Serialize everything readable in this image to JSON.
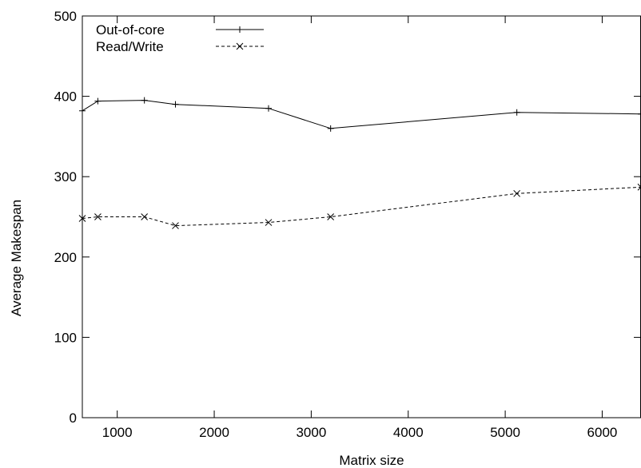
{
  "chart_data": {
    "type": "line",
    "xlabel": "Matrix size",
    "ylabel": "Average Makespan",
    "xlim": [
      640,
      6400
    ],
    "ylim": [
      0,
      500
    ],
    "xticks": [
      1000,
      2000,
      3000,
      4000,
      5000,
      6000
    ],
    "xtick_labels": [
      "1000",
      "2000",
      "3000",
      "4000",
      "5000",
      "6000"
    ],
    "yticks": [
      0,
      100,
      200,
      300,
      400,
      500
    ],
    "ytick_labels": [
      "0",
      "100",
      "200",
      "300",
      "400",
      "500"
    ],
    "grid": false,
    "legend_position": "top-left",
    "series": [
      {
        "name": "Out-of-core",
        "line_style": "solid",
        "marker": "plus",
        "color": "#000000",
        "x": [
          640,
          800,
          1280,
          1600,
          2560,
          3200,
          5120,
          6400
        ],
        "y": [
          382,
          394,
          395,
          390,
          385,
          360,
          380,
          378
        ]
      },
      {
        "name": "Read/Write",
        "line_style": "dashed",
        "marker": "cross",
        "color": "#000000",
        "x": [
          640,
          800,
          1280,
          1600,
          2560,
          3200,
          5120,
          6400
        ],
        "y": [
          248,
          250,
          250,
          239,
          243,
          250,
          279,
          287
        ]
      }
    ]
  }
}
